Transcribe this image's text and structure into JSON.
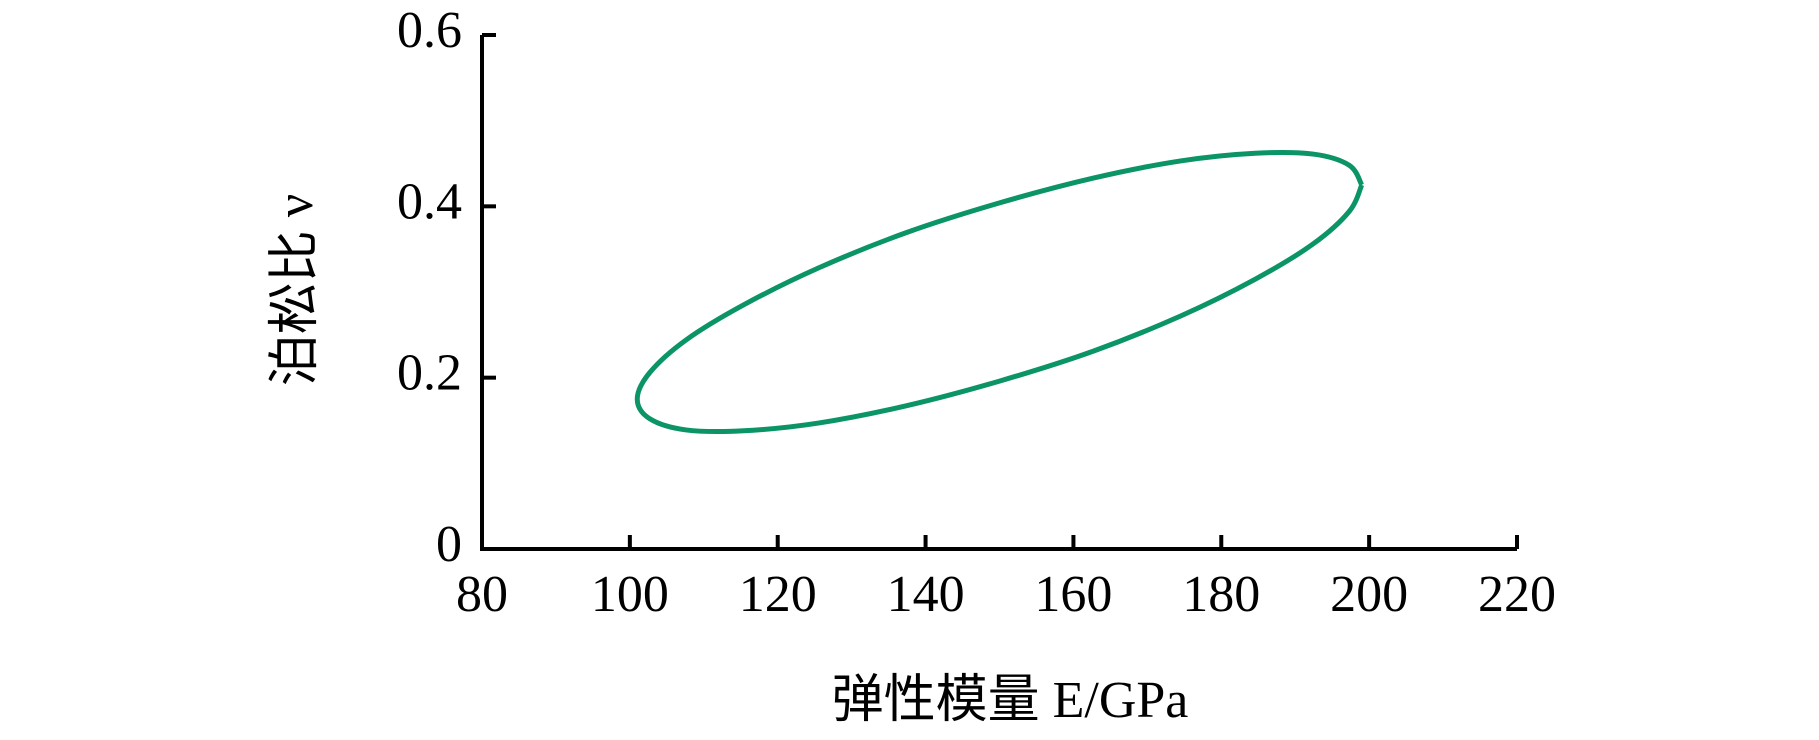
{
  "chart_data": {
    "type": "line",
    "x_label": "弹性模量 E/GPa",
    "y_label": "泊松比 ν",
    "x": [
      199,
      197.3,
      192.4,
      184.6,
      174.5,
      162.7,
      150,
      137.3,
      125.5,
      115.4,
      107.6,
      102.7,
      101,
      102.7,
      107.6,
      115.4,
      125.5,
      137.3,
      150,
      162.7,
      174.5,
      184.6,
      192.4,
      197.3,
      199
    ],
    "series": [
      {
        "color": "#0b9466",
        "values": [
          0.425,
          0.448,
          0.461,
          0.462,
          0.453,
          0.433,
          0.404,
          0.369,
          0.328,
          0.285,
          0.244,
          0.206,
          0.175,
          0.152,
          0.139,
          0.138,
          0.147,
          0.167,
          0.196,
          0.231,
          0.272,
          0.315,
          0.356,
          0.394,
          0.425
        ]
      }
    ],
    "xlim": [
      80,
      220
    ],
    "xticks": [
      80,
      100,
      120,
      140,
      160,
      180,
      200,
      220
    ],
    "ylim": [
      0,
      0.6
    ],
    "yticks": [
      0,
      0.2,
      0.4,
      0.6
    ]
  }
}
